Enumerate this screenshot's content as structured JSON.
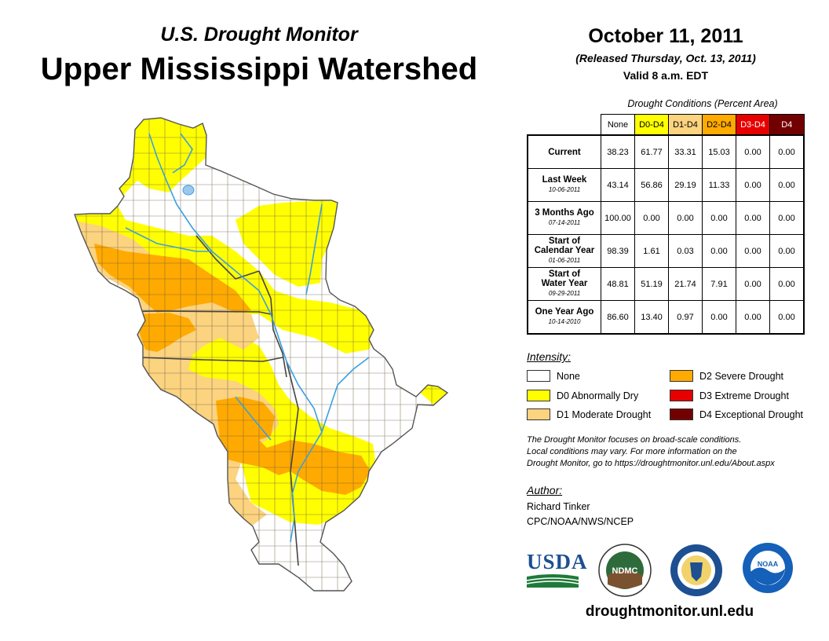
{
  "header": {
    "subtitle": "U.S. Drought Monitor",
    "title": "Upper Mississippi Watershed",
    "date": "October 11, 2011",
    "released": "(Released Thursday, Oct. 13, 2011)",
    "valid": "Valid 8 a.m. EDT"
  },
  "table": {
    "caption": "Drought Conditions (Percent Area)",
    "columns": [
      {
        "label": "None",
        "color": "#ffffff",
        "text_color": "#000000"
      },
      {
        "label": "D0-D4",
        "color": "#ffff00",
        "text_color": "#000000"
      },
      {
        "label": "D1-D4",
        "color": "#fcd37f",
        "text_color": "#000000"
      },
      {
        "label": "D2-D4",
        "color": "#ffaa00",
        "text_color": "#000000"
      },
      {
        "label": "D3-D4",
        "color": "#e60000",
        "text_color": "#ffffff"
      },
      {
        "label": "D4",
        "color": "#730000",
        "text_color": "#ffffff"
      }
    ],
    "rows": [
      {
        "label_lines": [
          "Current"
        ],
        "date": "",
        "values": [
          "38.23",
          "61.77",
          "33.31",
          "15.03",
          "0.00",
          "0.00"
        ]
      },
      {
        "label_lines": [
          "Last Week"
        ],
        "date": "10-06-2011",
        "values": [
          "43.14",
          "56.86",
          "29.19",
          "11.33",
          "0.00",
          "0.00"
        ]
      },
      {
        "label_lines": [
          "3 Months Ago"
        ],
        "date": "07-14-2011",
        "values": [
          "100.00",
          "0.00",
          "0.00",
          "0.00",
          "0.00",
          "0.00"
        ]
      },
      {
        "label_lines": [
          "Start of",
          "Calendar Year"
        ],
        "date": "01-06-2011",
        "values": [
          "98.39",
          "1.61",
          "0.03",
          "0.00",
          "0.00",
          "0.00"
        ]
      },
      {
        "label_lines": [
          "Start of",
          "Water Year"
        ],
        "date": "09-29-2011",
        "values": [
          "48.81",
          "51.19",
          "21.74",
          "7.91",
          "0.00",
          "0.00"
        ]
      },
      {
        "label_lines": [
          "One Year Ago"
        ],
        "date": "10-14-2010",
        "values": [
          "86.60",
          "13.40",
          "0.97",
          "0.00",
          "0.00",
          "0.00"
        ]
      }
    ]
  },
  "legend": {
    "title": "Intensity:",
    "items": [
      {
        "label": "None",
        "color": "#ffffff"
      },
      {
        "label": "D0 Abnormally Dry",
        "color": "#ffff00"
      },
      {
        "label": "D1 Moderate Drought",
        "color": "#fcd37f"
      },
      {
        "label": "D2 Severe Drought",
        "color": "#ffaa00"
      },
      {
        "label": "D3 Extreme Drought",
        "color": "#e60000"
      },
      {
        "label": "D4 Exceptional Drought",
        "color": "#730000"
      }
    ]
  },
  "note": {
    "lines": [
      "The Drought Monitor focuses on broad-scale conditions.",
      "Local conditions may vary. For more information on the",
      "Drought Monitor, go to https://droughtmonitor.unl.edu/About.aspx"
    ]
  },
  "author": {
    "label": "Author:",
    "name": "Richard Tinker",
    "org": "CPC/NOAA/NWS/NCEP"
  },
  "logos": {
    "usda": "USDA",
    "ndmc": "NDMC",
    "noaa": "NOAA"
  },
  "website": "droughtmonitor.unl.edu",
  "map_colors": {
    "none": "#ffffff",
    "d0": "#ffff00",
    "d1": "#fcd37f",
    "d2": "#ffaa00",
    "water": "#3b9fe0",
    "border": "#555555"
  }
}
